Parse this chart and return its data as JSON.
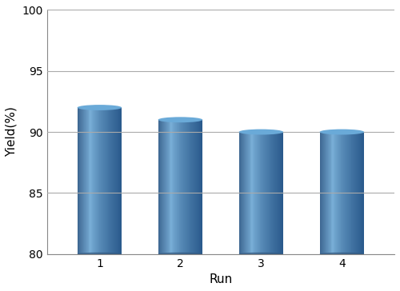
{
  "categories": [
    "1",
    "2",
    "3",
    "4"
  ],
  "values": [
    92,
    91,
    90,
    90
  ],
  "bar_color_main": "#4f86c0",
  "bar_color_light": "#7ab0d8",
  "bar_color_dark": "#2a5a8c",
  "bar_color_top": "#6aaad8",
  "bar_color_top_edge": "#4a80b8",
  "xlabel": "Run",
  "ylabel": "Yield(%)",
  "ylim": [
    80,
    100
  ],
  "yticks": [
    80,
    85,
    90,
    95,
    100
  ],
  "grid_color": "#aaaaaa",
  "spine_color": "#888888",
  "background_color": "#ffffff",
  "bar_width": 0.55,
  "figsize": [
    5.0,
    3.64
  ],
  "dpi": 100,
  "tick_fontsize": 10,
  "label_fontsize": 11
}
